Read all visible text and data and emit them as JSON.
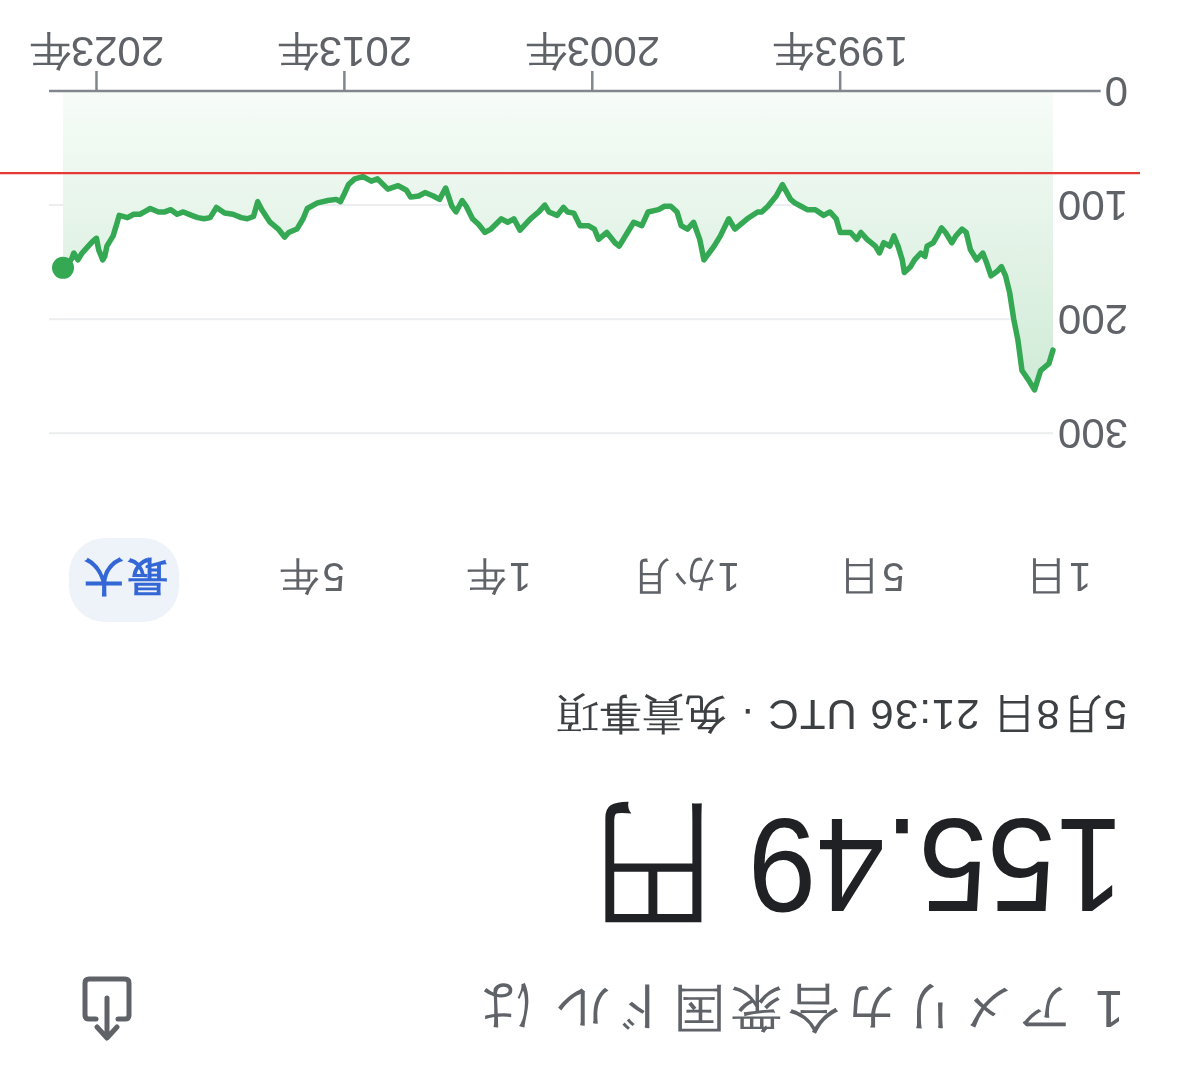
{
  "chart_data": {
    "type": "area",
    "title": "1 アメリカ合衆国ドル は",
    "subtitle": "155.49 円",
    "annotations": [
      "5月8日 21:36 UTC · 免責事項",
      "1日",
      "5日",
      "1か月",
      "1年",
      "5年",
      "最大"
    ],
    "x": [
      "1984-06",
      "1984-08",
      "1984-12",
      "1985-03",
      "1985-06",
      "1985-09",
      "1985-11",
      "1986-01",
      "1986-03",
      "1986-05",
      "1986-07",
      "1986-09",
      "1986-12",
      "1987-02",
      "1987-04",
      "1987-07",
      "1987-10",
      "1987-12",
      "1988-02",
      "1988-05",
      "1988-07",
      "1988-10",
      "1988-12",
      "1989-02",
      "1989-04",
      "1989-07",
      "1989-08",
      "1989-10",
      "1990-01",
      "1990-03",
      "1990-06",
      "1990-07",
      "1990-09",
      "1990-11",
      "1991-01",
      "1991-04",
      "1991-06",
      "1991-08",
      "1991-12",
      "1992-03",
      "1992-05",
      "1992-08",
      "1993-01",
      "1993-03",
      "1993-06",
      "1993-09",
      "1994-01",
      "1994-05",
      "1994-08",
      "1994-11",
      "1995-01",
      "1995-05",
      "1995-08",
      "1995-12",
      "1996-03",
      "1996-05",
      "1996-10",
      "1997-04",
      "1997-07",
      "1997-11",
      "1998-02",
      "1998-07",
      "1998-09",
      "1998-12",
      "1999-03",
      "1999-06",
      "1999-08",
      "1999-11",
      "2000-02",
      "2000-05",
      "2000-10",
      "2001-01",
      "2001-05",
      "2001-08",
      "2001-12",
      "2002-02",
      "2002-06",
      "2002-10",
      "2002-12",
      "2003-03",
      "2003-07",
      "2003-10",
      "2004-01",
      "2004-03",
      "2004-06",
      "2004-10",
      "2004-12",
      "2005-03",
      "2005-07",
      "2005-10",
      "2005-12",
      "2006-03",
      "2006-06",
      "2006-09",
      "2007-02",
      "2007-05",
      "2007-08",
      "2007-11",
      "2008-02",
      "2008-04",
      "2008-07",
      "2008-09",
      "2008-12",
      "2009-03",
      "2009-06",
      "2009-10",
      "2010-01",
      "2010-05",
      "2010-07",
      "2010-11",
      "2011-04",
      "2011-09",
      "2011-12",
      "2012-04",
      "2012-08",
      "2012-11",
      "2013-01",
      "2013-03",
      "2013-05",
      "2013-09",
      "2014-02",
      "2014-07",
      "2014-09",
      "2014-12",
      "2015-04",
      "2015-06",
      "2015-09",
      "2015-11",
      "2016-01",
      "2016-05",
      "2016-07",
      "2016-09",
      "2016-12",
      "2017-03",
      "2017-07",
      "2017-11",
      "2018-03",
      "2018-06",
      "2018-09",
      "2018-12",
      "2019-03",
      "2019-07",
      "2019-10",
      "2020-01",
      "2020-04",
      "2020-07",
      "2020-11",
      "2021-01",
      "2021-04",
      "2021-07",
      "2021-10",
      "2022-02",
      "2022-03",
      "2022-05",
      "2022-08",
      "2022-09",
      "2022-10",
      "2022-12",
      "2023-01",
      "2023-03",
      "2023-05",
      "2023-08",
      "2023-10",
      "2023-12",
      "2024-01",
      "2024-03",
      "2024-05-08"
    ],
    "series": [
      {
        "color": "#34a853",
        "values": [
          227,
          239,
          245,
          262,
          253,
          245,
          218,
          200,
          177,
          162,
          154,
          158,
          162,
          151,
          142,
          148,
          139,
          124,
          121,
          127,
          133,
          124,
          120,
          127,
          133,
          136,
          145,
          142,
          148,
          154,
          159,
          148,
          136,
          127,
          136,
          133,
          142,
          136,
          130,
          124,
          130,
          124,
          124,
          112,
          106,
          109,
          104,
          104,
          101,
          98,
          95,
          82,
          92,
          101,
          106,
          106,
          112,
          121,
          112,
          127,
          136,
          148,
          130,
          115,
          121,
          118,
          106,
          101,
          101,
          104,
          106,
          118,
          115,
          124,
          136,
          133,
          124,
          130,
          121,
          118,
          118,
          107,
          106,
          102,
          109,
          106,
          100,
          106,
          112,
          118,
          122,
          112,
          115,
          112,
          121,
          124,
          117,
          112,
          101,
          96,
          106,
          101,
          85,
          95,
          92,
          89,
          92,
          93,
          87,
          83,
          86,
          77,
          79,
          75,
          77,
          82,
          90,
          97,
          95,
          96,
          98,
          103,
          112,
          121,
          124,
          128,
          121,
          118,
          115,
          104,
          97,
          110,
          112,
          111,
          108,
          107,
          102,
          111,
          112,
          111,
          109,
          106,
          108,
          104,
          106,
          106,
          103,
          105,
          108,
          108,
          111,
          109,
          115,
          127,
          136,
          145,
          148,
          139,
          129,
          132,
          136,
          142,
          148,
          142,
          147,
          152,
          155
        ]
      }
    ],
    "xlim": [
      "2024-12",
      "1984-06"
    ],
    "ylim": [
      300,
      0
    ],
    "xticks": [
      {
        "value": "1993",
        "label": "1993年"
      },
      {
        "value": "2003",
        "label": "2003年"
      },
      {
        "value": "2013",
        "label": "2013年"
      },
      {
        "value": "2023",
        "label": "2023年"
      }
    ],
    "yticks": [
      0,
      100,
      200,
      300
    ],
    "grid": "y",
    "ref_lines": [
      {
        "axis": "y",
        "value": 72,
        "color": "#e53935"
      }
    ]
  }
}
